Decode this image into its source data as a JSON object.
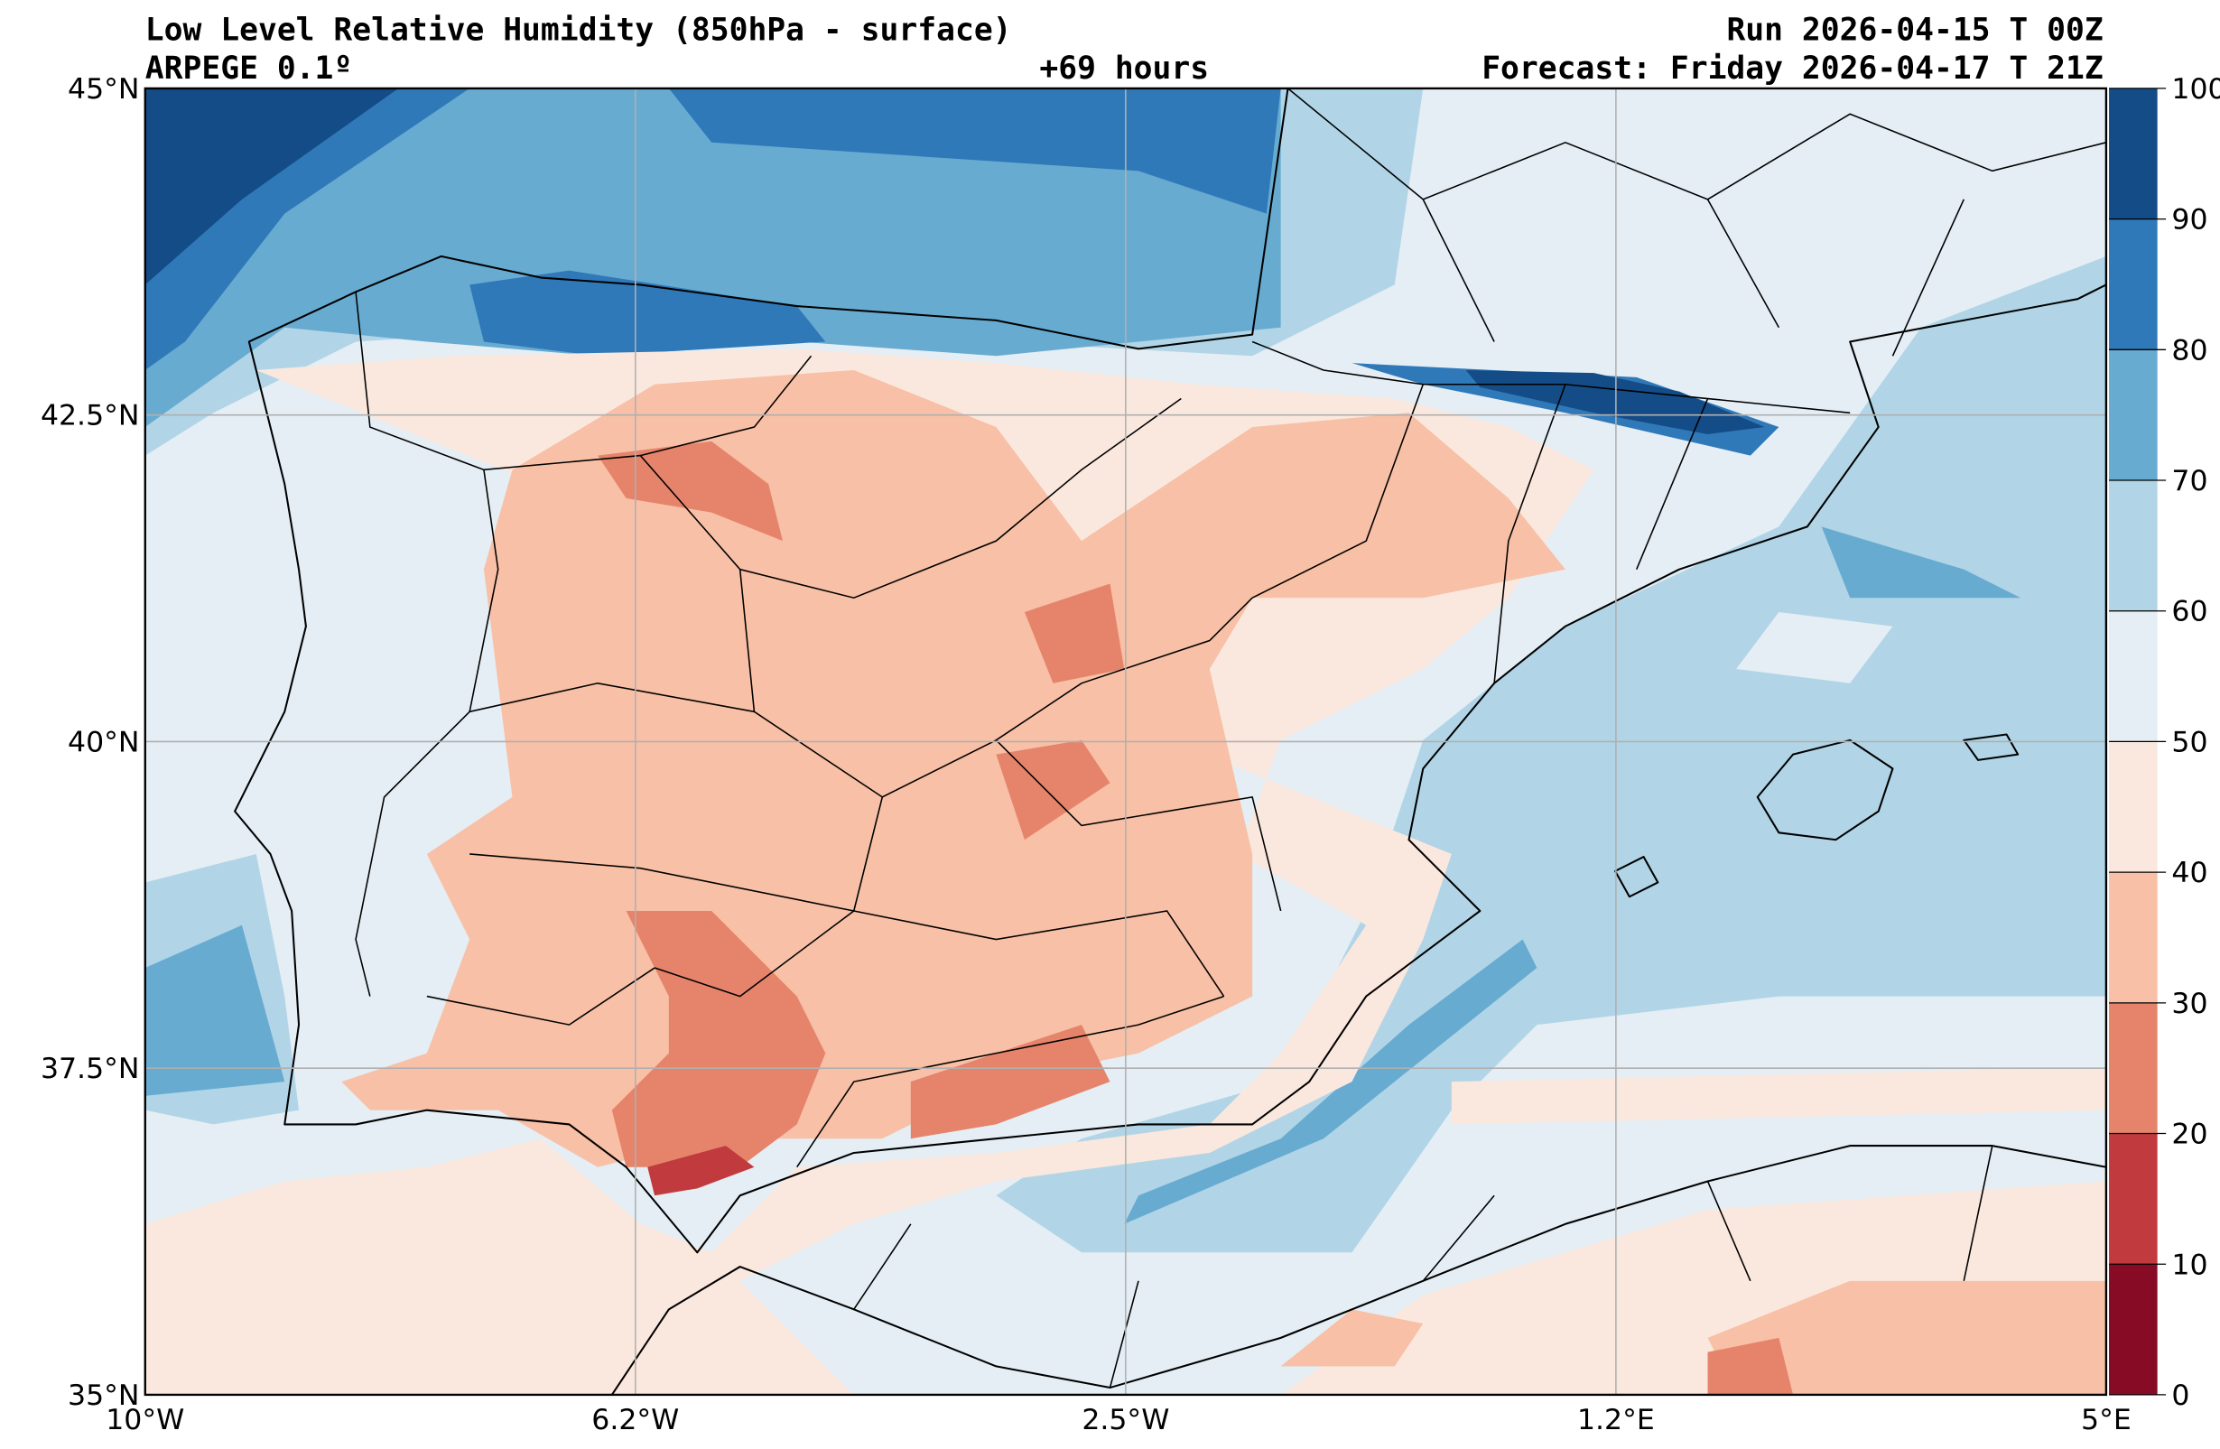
{
  "header": {
    "title": "Low Level Relative Humidity (850hPa - surface)",
    "model": "ARPEGE 0.1º",
    "lead_time": "+69 hours",
    "run": "Run 2026-04-15 T 00Z",
    "forecast": "Forecast: Friday 2026-04-17 T 21Z"
  },
  "map": {
    "lon_ticks": [
      {
        "value": -10,
        "label": "10°W"
      },
      {
        "value": -6.25,
        "label": "6.2°W"
      },
      {
        "value": -2.5,
        "label": "2.5°W"
      },
      {
        "value": 1.25,
        "label": "1.2°E"
      },
      {
        "value": 5,
        "label": "5°E"
      }
    ],
    "lat_ticks": [
      {
        "value": 35,
        "label": "35°N"
      },
      {
        "value": 37.5,
        "label": "37.5°N"
      },
      {
        "value": 40,
        "label": "40°N"
      },
      {
        "value": 42.5,
        "label": "42.5°N"
      },
      {
        "value": 45,
        "label": "45°N"
      }
    ],
    "lon_range": [
      -10,
      5
    ],
    "lat_range": [
      35,
      45
    ]
  },
  "colorbar": {
    "levels": [
      0,
      10,
      20,
      30,
      40,
      50,
      60,
      70,
      80,
      90,
      100
    ],
    "labels": [
      "0",
      "10",
      "20",
      "30",
      "40",
      "50",
      "60",
      "70",
      "80",
      "90",
      "100"
    ],
    "colors": [
      "#870b25",
      "#c13a3d",
      "#e5846b",
      "#f8c0a6",
      "#fae8de",
      "#e4eef4",
      "#b1d5e7",
      "#68abd1",
      "#3079b9",
      "#144c87"
    ]
  }
}
